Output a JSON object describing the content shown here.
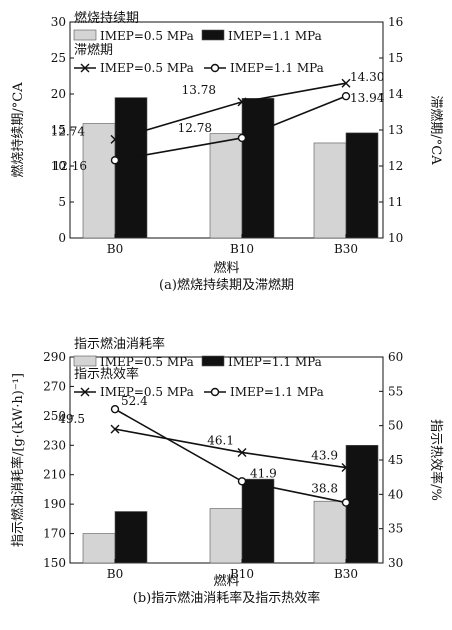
{
  "chart_data": [
    {
      "type": "bar+line",
      "caption": "(a)燃烧持续期及滞燃期",
      "xlabel": "燃料",
      "categories": [
        "B0",
        "B10",
        "B30"
      ],
      "left_axis": {
        "label": "燃烧持续期/°CA",
        "range": [
          0,
          30
        ],
        "ticks": [
          0,
          5,
          10,
          15,
          20,
          25,
          30
        ]
      },
      "right_axis": {
        "label": "滞燃期/°CA",
        "range": [
          10,
          16
        ],
        "ticks": [
          10,
          11,
          12,
          13,
          14,
          15,
          16
        ]
      },
      "bar_group_title": "燃烧持续期",
      "line_group_title": "滞燃期",
      "bar_series": [
        {
          "name": "IMEP=0.5 MPa",
          "values": [
            15.9,
            14.5,
            13.2
          ],
          "color": "#d4d4d4"
        },
        {
          "name": "IMEP=1.1 MPa",
          "values": [
            19.5,
            19.4,
            14.6
          ],
          "color": "#111111"
        }
      ],
      "line_series": [
        {
          "name": "IMEP=0.5 MPa",
          "marker": "x",
          "values": [
            12.74,
            13.78,
            14.3
          ],
          "labels": [
            "12.74",
            "13.78",
            "14.30"
          ]
        },
        {
          "name": "IMEP=1.1 MPa",
          "marker": "o",
          "values": [
            12.16,
            12.78,
            13.94
          ],
          "labels": [
            "12.16",
            "12.78",
            "13.94"
          ]
        }
      ]
    },
    {
      "type": "bar+line",
      "caption": "(b)指示燃油消耗率及指示热效率",
      "xlabel": "燃料",
      "categories": [
        "B0",
        "B10",
        "B30"
      ],
      "left_axis": {
        "label": "指示燃油消耗率/[g·(kW·h)⁻¹]",
        "range": [
          150,
          290
        ],
        "ticks": [
          150,
          170,
          190,
          210,
          230,
          250,
          270,
          290
        ]
      },
      "right_axis": {
        "label": "指示热效率/%",
        "range": [
          30,
          60
        ],
        "ticks": [
          30,
          35,
          40,
          45,
          50,
          55,
          60
        ]
      },
      "bar_group_title": "指示燃油消耗率",
      "line_group_title": "指示热效率",
      "bar_series": [
        {
          "name": "IMEP=0.5 MPa",
          "values": [
            170,
            187,
            192
          ],
          "color": "#d4d4d4"
        },
        {
          "name": "IMEP=1.1 MPa",
          "values": [
            185,
            207,
            230
          ],
          "color": "#111111"
        }
      ],
      "line_series": [
        {
          "name": "IMEP=0.5 MPa",
          "marker": "x",
          "values": [
            49.5,
            46.1,
            43.9
          ],
          "labels": [
            "49.5",
            "46.1",
            "43.9"
          ]
        },
        {
          "name": "IMEP=1.1 MPa",
          "marker": "o",
          "values": [
            52.4,
            41.9,
            38.8
          ],
          "labels": [
            "52.4",
            "41.9",
            "38.8"
          ]
        }
      ]
    }
  ]
}
